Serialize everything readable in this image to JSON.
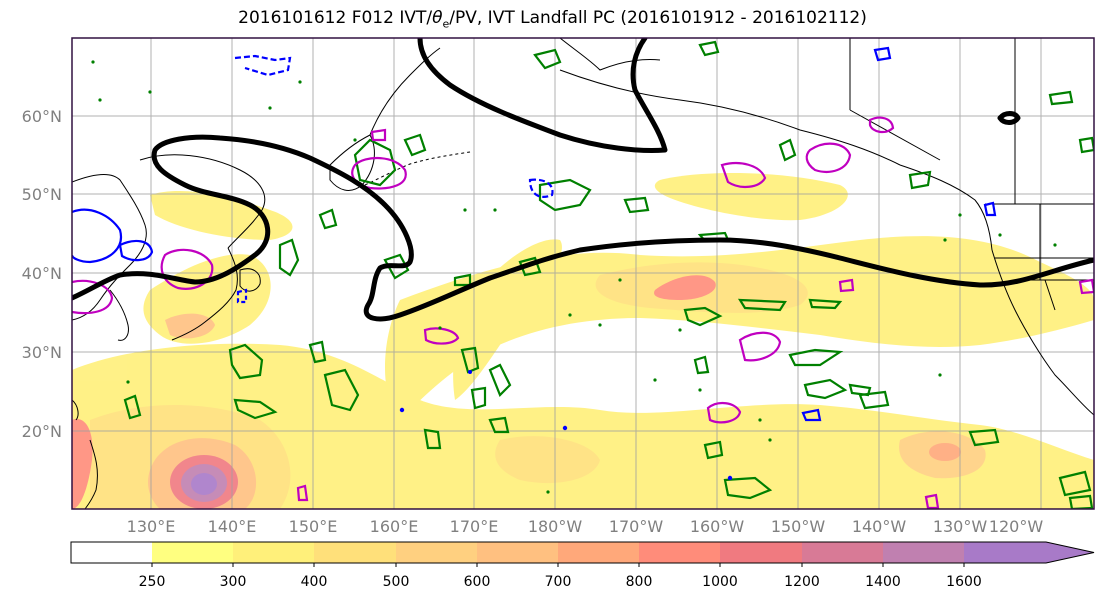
{
  "title": {
    "prefix": "2016101612 F012 IVT/",
    "theta": "θ",
    "theta_sub": "e",
    "suffix": "/PV, IVT Landfall PC (2016101912 - 2016102112)"
  },
  "map": {
    "lat_labels": [
      "60°N",
      "50°N",
      "40°N",
      "30°N",
      "20°N"
    ],
    "lon_labels": [
      "130°E",
      "140°E",
      "150°E",
      "160°E",
      "170°E",
      "180°W",
      "170°W",
      "160°W",
      "150°W",
      "140°W",
      "130°W",
      "120°W"
    ],
    "grid": true
  },
  "colorbar": {
    "ticks": [
      "250",
      "300",
      "400",
      "500",
      "600",
      "700",
      "800",
      "1000",
      "1200",
      "1400",
      "1600"
    ],
    "colors": [
      "#ffffff",
      "#ffff80",
      "#fff07a",
      "#ffe07a",
      "#ffd080",
      "#ffc080",
      "#ffa87a",
      "#ff8c7a",
      "#f07a80",
      "#d87a96",
      "#c080b0",
      "#a87ac8"
    ]
  },
  "colors": {
    "pc_contour": "#000000",
    "pv_contour": "#008000",
    "theta_warm": "#c000c0",
    "theta_cold": "#0000ff",
    "frame": "#301040"
  }
}
